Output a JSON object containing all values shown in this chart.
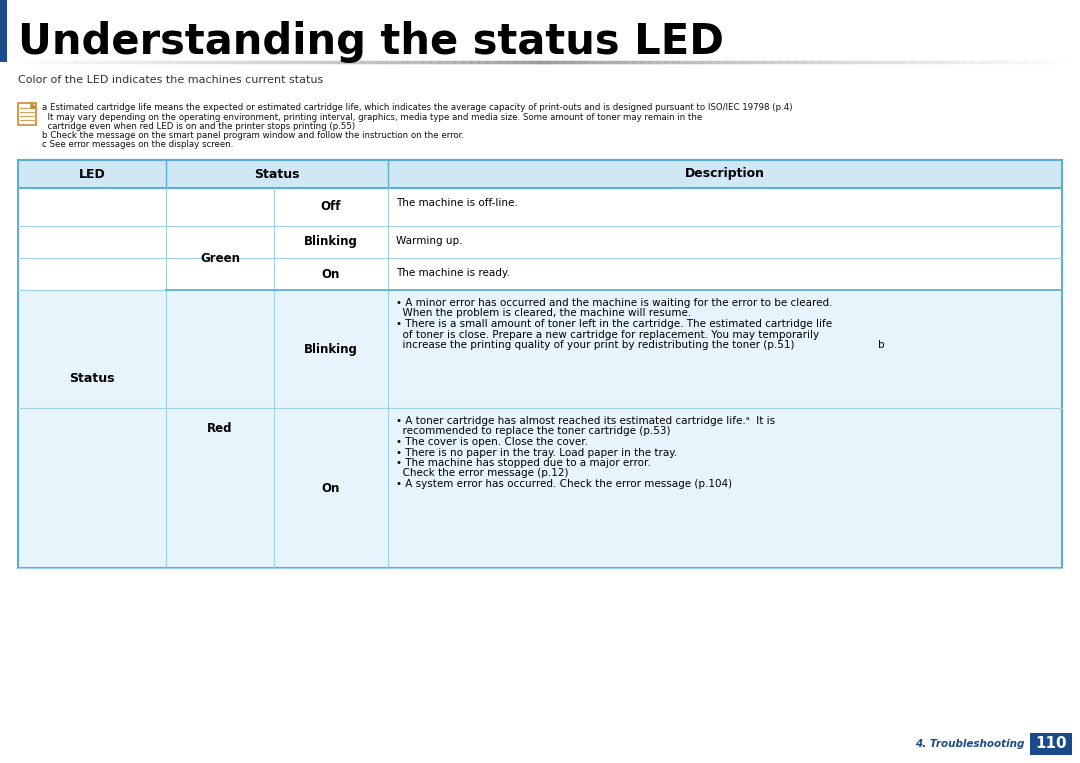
{
  "title": "Understanding the status LED",
  "page_num": "110",
  "chapter": "4. Troubleshooting",
  "bg_color": "#ffffff",
  "title_bar_color": "#1e4d8c",
  "header_bg": "#d0e8f5",
  "row_bg_alt": "#e8f4fb",
  "row_bg_white": "#ffffff",
  "border_color": "#5aaed0",
  "border_light": "#a0d0e8",
  "title_color": "#000000",
  "note_icon_color": "#cc8833",
  "page_badge_color": "#1a4a8a",
  "note_line1": "a Estimated cartridge life means the expected or estimated cartridge life, which indicates the average capacity of print-outs and is designed pursuant to ISO/IEC 19798 (p.4)",
  "note_line2": "  It may vary depending on the operating environment, printing interval, graphics, media type and media size. Some amount of toner may remain in the",
  "note_line3": "  cartridge even when red LED is on and the printer stops printing (p.55)",
  "note_line4": "b Check the message on the smart panel program window and follow the instruction on the error.",
  "note_line5": "c See error messages on the display screen.",
  "intro_text1": "Color of the LED indicates the machines current status"
}
